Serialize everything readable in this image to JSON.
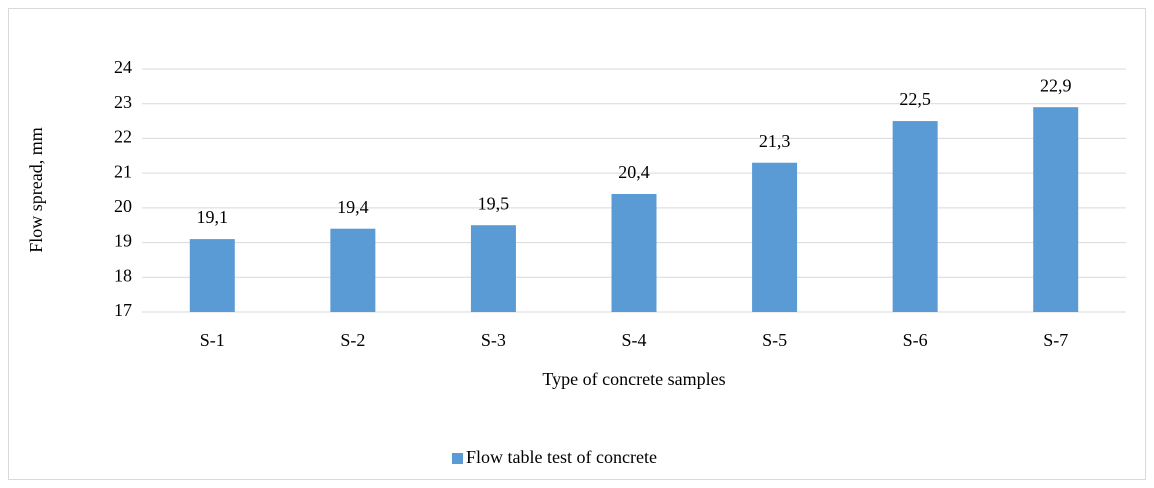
{
  "chart_data": {
    "type": "bar",
    "categories": [
      "S-1",
      "S-2",
      "S-3",
      "S-4",
      "S-5",
      "S-6",
      "S-7"
    ],
    "series": [
      {
        "name": "Flow table test of concrete",
        "color": "#5b9bd5",
        "values": [
          19.1,
          19.4,
          19.5,
          20.4,
          21.3,
          22.5,
          22.9
        ],
        "value_labels": [
          "19,1",
          "19,4",
          "19,5",
          "20,4",
          "21,3",
          "22,5",
          "22,9"
        ]
      }
    ],
    "x_label": "Type of concrete samples",
    "y_label": "Flow spread, mm",
    "ylim": [
      17,
      24
    ],
    "yticks": [
      17,
      18,
      19,
      20,
      21,
      22,
      23,
      24
    ],
    "grid": true,
    "legend": "bottom"
  }
}
